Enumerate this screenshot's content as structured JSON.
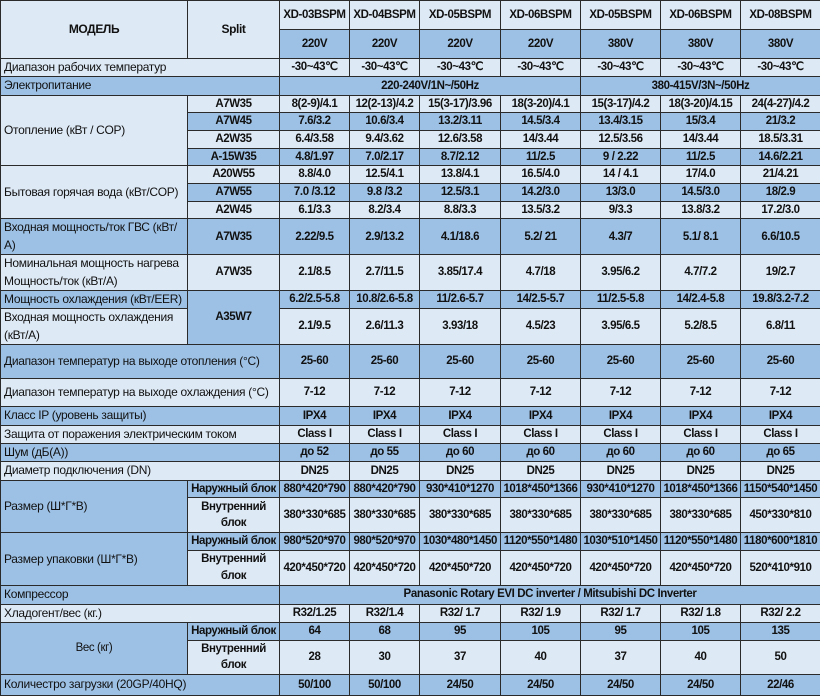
{
  "header": {
    "model_label": "МОДЕЛЬ",
    "split_label": "Split",
    "models": [
      "XD-03BSPM",
      "XD-04BSPM",
      "XD-05BSPM",
      "XD-06BSPM",
      "XD-05BSPM",
      "XD-06BSPM",
      "XD-08BSPM"
    ],
    "voltages": [
      "220V",
      "220V",
      "220V",
      "220V",
      "380V",
      "380V",
      "380V"
    ]
  },
  "operating_temp": {
    "label": "Диапазон рабочих температур",
    "values": [
      "-30~43℃",
      "-30~43℃",
      "-30~43℃",
      "-30~43℃",
      "-30~43℃",
      "-30~43℃",
      "-30~43℃"
    ]
  },
  "power_supply": {
    "label": "Электропитание",
    "values": [
      "220-240V/1N~/50Hz",
      "380-415V/3N~/50Hz"
    ]
  },
  "heating": {
    "label": "Отопление (кВт / COP)",
    "conditions": [
      {
        "condition": "A7W35",
        "values": [
          "8(2-9)/4.1",
          "12(2-13)/4.2",
          "15(3-17)/3.96",
          "18(3-20)/4.1",
          "15(3-17)/4.2",
          "18(3-20)/4.15",
          "24(4-27)/4.2"
        ]
      },
      {
        "condition": "A7W45",
        "values": [
          "7.6/3.2",
          "10.6/3.4",
          "13.2/3.11",
          "14.5/3.4",
          "13.4/3.15",
          "15/3.4",
          "21/3.2"
        ]
      },
      {
        "condition": "A2W35",
        "values": [
          "6.4/3.58",
          "9.4/3.62",
          "12.6/3.58",
          "14/3.44",
          "12.5/3.56",
          "14/3.44",
          "18.5/3.31"
        ]
      },
      {
        "condition": "A-15W35",
        "values": [
          "4.8/1.97",
          "7.0/2.17",
          "8.7/2.12",
          "11/2.5",
          "9 / 2.22",
          "11/2.5",
          "14.6/2.21"
        ]
      }
    ]
  },
  "hot_water": {
    "label": "Бытовая горячая вода (кВт/COP)",
    "conditions": [
      {
        "condition": "A20W55",
        "values": [
          "8.8/4.0",
          "12.5/4.1",
          "13.8/4.1",
          "16.5/4.0",
          "14 / 4.1",
          "17/4.0",
          "21/4.21"
        ]
      },
      {
        "condition": "A7W55",
        "values": [
          "7.0 /3.12",
          "9.8 /3.2",
          "12.5/3.1",
          "14.2/3.0",
          "13/3.0",
          "14.5/3.0",
          "18/2.9"
        ]
      },
      {
        "condition": "A2W45",
        "values": [
          "6.1/3.3",
          "8.2/3.4",
          "8.8/3.3",
          "13.5/3.2",
          "9/3.3",
          "13.8/3.2",
          "17.2/3.0"
        ]
      }
    ]
  },
  "dhw_input": {
    "label": "Входная мощность/ток ГВС (кВт/А)",
    "condition": "A7W35",
    "values": [
      "2.22/9.5",
      "2.9/13.2",
      "4.1/18.6",
      "5.2/ 21",
      "4.3/7",
      "5.1/ 8.1",
      "6.6/10.5"
    ]
  },
  "nominal_heating": {
    "label": "Номинальная мощность нагрева Мощность/ток (кВт/А)",
    "condition": "A7W35",
    "values": [
      "2.1/8.5",
      "2.7/11.5",
      "3.85/17.4",
      "4.7/18",
      "3.95/6.2",
      "4.7/7.2",
      "19/2.7"
    ]
  },
  "cooling": {
    "capacity_label": "Мощность охлаждения (кВт/EER)",
    "input_label": "Входная мощность охлаждения (кВт/А)",
    "condition": "A35W7",
    "capacity_values": [
      "6.2/2.5-5.8",
      "10.8/2.6-5.8",
      "11/2.6-5.7",
      "14/2.5-5.7",
      "11/2.5-5.8",
      "14/2.4-5.8",
      "19.8/3.2-7.2"
    ],
    "input_values": [
      "2.1/9.5",
      "2.6/11.3",
      "3.93/18",
      "4.5/23",
      "3.95/6.5",
      "5.2/8.5",
      "6.8/11"
    ]
  },
  "heating_outlet_range": {
    "label": "Диапазон температур на выходе отопления (°C)",
    "values": [
      "25-60",
      "25-60",
      "25-60",
      "25-60",
      "25-60",
      "25-60",
      "25-60"
    ]
  },
  "cooling_outlet_range": {
    "label": "Диапазон температур на выходе охлаждения (°C)",
    "values": [
      "7-12",
      "7-12",
      "7-12",
      "7-12",
      "7-12",
      "7-12",
      "7-12"
    ]
  },
  "ip_class": {
    "label": "Класс IP (уровень защиты)",
    "values": [
      "IPX4",
      "IPX4",
      "IPX4",
      "IPX4",
      "IPX4",
      "IPX4",
      "IPX4"
    ]
  },
  "protection": {
    "label": "Защита от поражения электрическим током",
    "values": [
      "Class I",
      "Class I",
      "Class I",
      "Class I",
      "Class I",
      "Class I",
      "Class I"
    ]
  },
  "noise": {
    "label": "Шум (дБ(А))",
    "values": [
      "до 52",
      "до 55",
      "до 60",
      "до 60",
      "до 60",
      "до 60",
      "до 65"
    ]
  },
  "connection_diameter": {
    "label": "Диаметр подключения (DN)",
    "values": [
      "DN25",
      "DN25",
      "DN25",
      "DN25",
      "DN25",
      "DN25",
      "DN25"
    ]
  },
  "size": {
    "label": "Размер (Ш*Г*В)",
    "outer_label": "Наружный блок",
    "inner_label": "Внутренний блок",
    "outer": [
      "880*420*790",
      "880*420*790",
      "930*410*1270",
      "1018*450*1366",
      "930*410*1270",
      "1018*450*1366",
      "1150*540*1450"
    ],
    "inner": [
      "380*330*685",
      "380*330*685",
      "380*330*685",
      "380*330*685",
      "380*330*685",
      "380*330*685",
      "450*330*810"
    ]
  },
  "package_size": {
    "label": "Размер упаковки (Ш*Г*В)",
    "outer_label": "Наружный блок",
    "inner_label": "Внутренний блок",
    "outer": [
      "980*520*970",
      "980*520*970",
      "1030*480*1450",
      "1120*550*1480",
      "1030*510*1450",
      "1120*550*1480",
      "1180*600*1810"
    ],
    "inner": [
      "420*450*720",
      "420*450*720",
      "420*450*720",
      "420*450*720",
      "420*450*720",
      "420*450*720",
      "520*410*910"
    ]
  },
  "compressor": {
    "label": "Компрессор",
    "value": "Panasonic Rotary EVI DC inverter / Mitsubishi DC Inverter"
  },
  "refrigerant": {
    "label": "Хладогент/вес (кг.)",
    "values": [
      "R32/1.25",
      "R32/1.4",
      "R32/ 1.7",
      "R32/ 1.9",
      "R32/ 1.7",
      "R32/ 1.8",
      "R32/ 2.2"
    ]
  },
  "weight": {
    "label": "Вес (кг)",
    "outer_label": "Наружный блок",
    "inner_label": "Внутренний блок",
    "outer": [
      "64",
      "68",
      "95",
      "105",
      "95",
      "105",
      "135"
    ],
    "inner": [
      "28",
      "30",
      "37",
      "40",
      "37",
      "40",
      "50"
    ]
  },
  "loading": {
    "label": "Количестро загрузки (20GP/40HQ)",
    "values": [
      "50/100",
      "50/100",
      "24/50",
      "24/50",
      "24/50",
      "24/50",
      "22/46"
    ]
  },
  "colors": {
    "light_cell": "#dde9f5",
    "blue_cell": "#9dc1e5",
    "border": "#2a2a2a"
  }
}
